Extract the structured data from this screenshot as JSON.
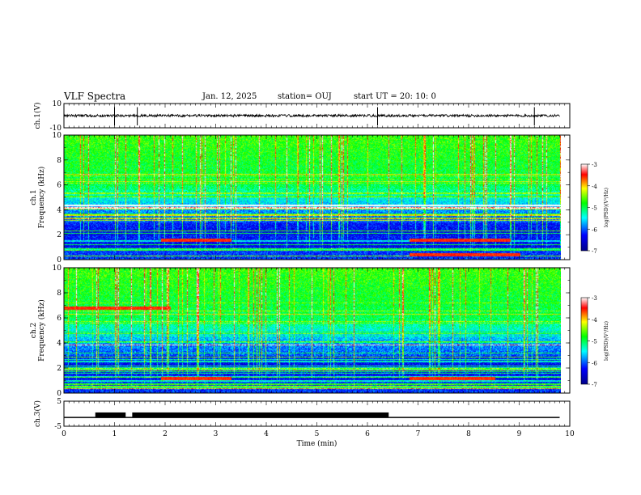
{
  "header": {
    "title": "VLF Spectra",
    "date": "Jan. 12, 2025",
    "station": "station= OUJ",
    "start": "start UT =  20: 10: 0"
  },
  "chart_data": [
    {
      "panel": "ch1-waveform",
      "type": "line",
      "ylabel": "ch.1(V)",
      "ylim": [
        -10,
        10
      ],
      "yticks": [
        "10",
        "-10"
      ],
      "baseline": 0,
      "noise_amplitude": 1,
      "spikes_min": [
        1.0,
        1.45,
        6.2,
        9.3
      ]
    },
    {
      "panel": "ch1-spectrogram",
      "type": "heatmap",
      "ylabel": "ch.1\nFrequency (kHz)",
      "ylim": [
        0,
        10
      ],
      "yticks": [
        "0",
        "2",
        "4",
        "6",
        "8",
        "10"
      ],
      "xlim": [
        0,
        9.8
      ],
      "description": "broadband VLF noise green above 6 kHz, blue/dark below 4 kHz, horizontal carrier lines",
      "enhanced_bands": [
        {
          "t_start": 1.9,
          "t_end": 3.3,
          "freq_khz": 1.6
        },
        {
          "t_start": 6.8,
          "t_end": 8.8,
          "freq_khz": 1.6
        },
        {
          "t_start": 6.8,
          "t_end": 9.0,
          "freq_khz": 0.4
        }
      ],
      "colorbar": {
        "label": "log(PSD)(V²/Hz)",
        "ticks": [
          "-3",
          "-4",
          "-5",
          "-6",
          "-7"
        ],
        "range": [
          -7,
          -3
        ]
      }
    },
    {
      "panel": "ch2-spectrogram",
      "type": "heatmap",
      "ylabel": "ch.2\nFrequency (kHz)",
      "ylim": [
        0,
        10
      ],
      "yticks": [
        "0",
        "2",
        "4",
        "6",
        "8",
        "10"
      ],
      "xlim": [
        0,
        9.8
      ],
      "description": "similar to ch.1 with red line near 6.8 kHz for t<2 min",
      "enhanced_bands": [
        {
          "t_start": 0.0,
          "t_end": 2.1,
          "freq_khz": 6.8
        },
        {
          "t_start": 1.9,
          "t_end": 3.3,
          "freq_khz": 1.2
        },
        {
          "t_start": 6.8,
          "t_end": 8.5,
          "freq_khz": 1.2
        }
      ],
      "colorbar": {
        "label": "log(PSD)(V²/Hz)",
        "ticks": [
          "-3",
          "-4",
          "-5",
          "-6",
          "-7"
        ],
        "range": [
          -7,
          -3
        ]
      }
    },
    {
      "panel": "ch3-waveform",
      "type": "line",
      "ylabel": "ch.3(V)",
      "ylim": [
        -5,
        5
      ],
      "yticks": [
        "5",
        "-5"
      ],
      "baseline_v": -1.5,
      "pulse_v": 0.5,
      "pulse_intervals_min": [
        [
          0.62,
          1.22
        ],
        [
          1.35,
          6.42
        ]
      ],
      "xlabel": "Time (min)",
      "xlim": [
        0,
        10
      ],
      "xticks": [
        "0",
        "1",
        "2",
        "3",
        "4",
        "5",
        "6",
        "7",
        "8",
        "9",
        "10"
      ]
    }
  ]
}
